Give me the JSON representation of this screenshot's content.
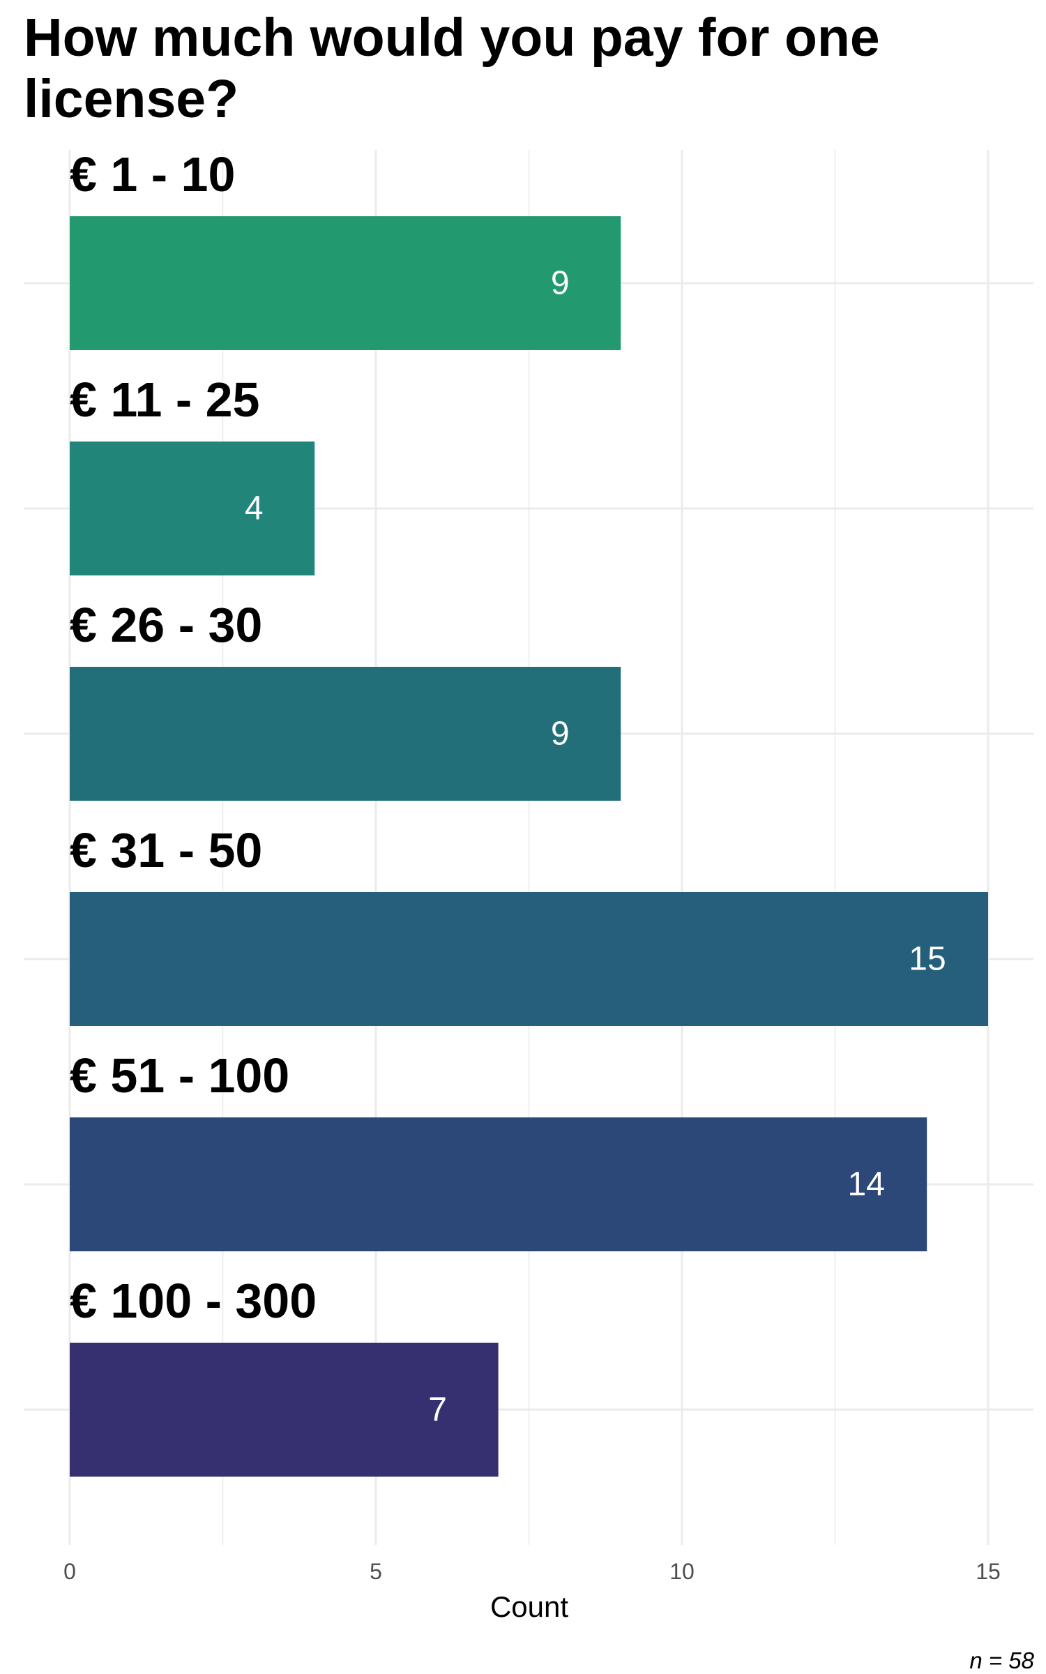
{
  "chart_data": {
    "type": "bar",
    "orientation": "horizontal",
    "title": "How much would you pay for one license?",
    "categories": [
      "€ 1 - 10",
      "€ 11 - 25",
      "€ 26 - 30",
      "€ 31 - 50",
      "€ 51 - 100",
      "€ 100 - 300"
    ],
    "values": [
      9,
      4,
      9,
      15,
      14,
      7
    ],
    "colors": [
      "#22996f",
      "#21857a",
      "#226f79",
      "#255f7b",
      "#2c4878",
      "#363070"
    ],
    "xlabel": "Count",
    "ylabel": "",
    "xlim": [
      0,
      15.8
    ],
    "xticks": [
      0,
      5,
      10,
      15
    ],
    "grid": true,
    "legend": "none",
    "caption": "n = 58"
  }
}
